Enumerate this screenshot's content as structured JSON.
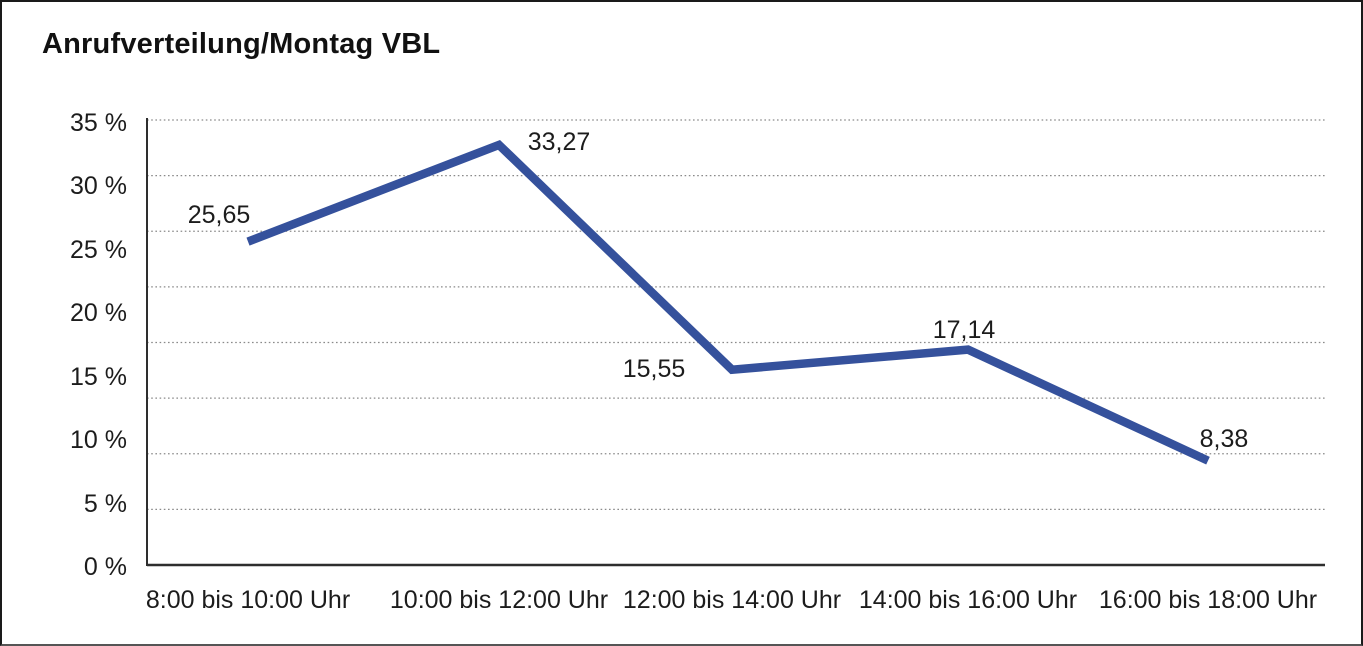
{
  "chart_data": {
    "type": "line",
    "title": "Anrufverteilung/Montag VBL",
    "categories": [
      "8:00 bis 10:00 Uhr",
      "10:00 bis 12:00 Uhr",
      "12:00 bis 14:00 Uhr",
      "14:00 bis 16:00 Uhr",
      "16:00 bis 18:00 Uhr"
    ],
    "values": [
      25.65,
      33.27,
      15.55,
      17.14,
      8.38
    ],
    "value_labels": [
      "25,65",
      "33,27",
      "15,55",
      "17,14",
      "8,38"
    ],
    "y_tick_labels": [
      "35 %",
      "30 %",
      "25 %",
      "20 %",
      "15 %",
      "10 %",
      "5 %",
      "0 %"
    ],
    "ylim": [
      0,
      35
    ],
    "xlabel": "",
    "ylabel": "",
    "legend": "none",
    "grid": "horizontal-dotted",
    "line_color": "#35519C",
    "gridline_color": "#8a8a8a",
    "axis_color": "#2e2e2e",
    "text_color": "#1c1c1c"
  }
}
